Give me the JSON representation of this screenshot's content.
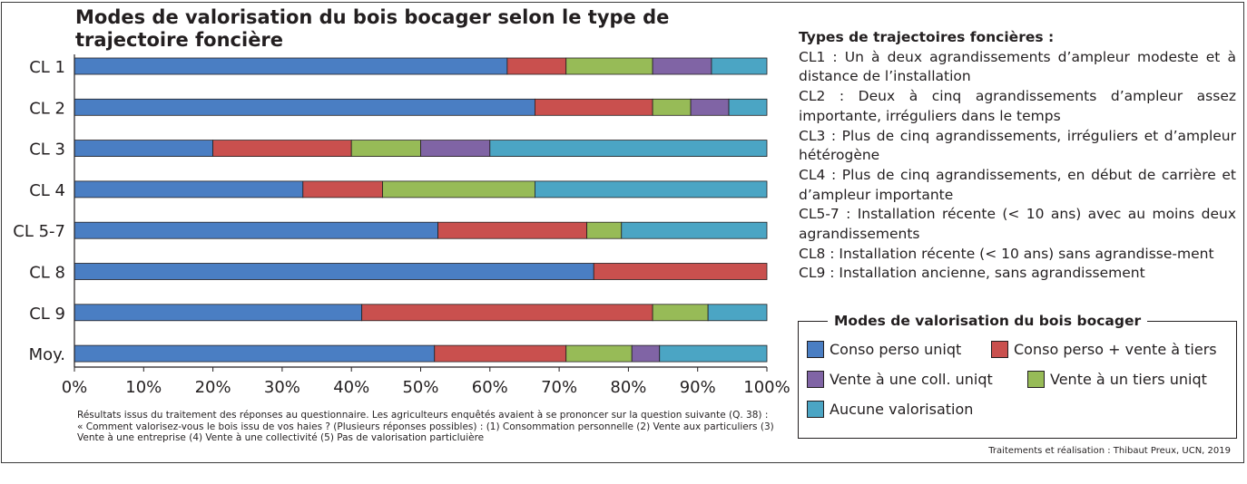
{
  "chart_data": {
    "type": "bar",
    "orientation": "horizontal",
    "stacked": true,
    "title": "Modes de valorisation du bois bocager selon le type de trajectoire foncière",
    "categories": [
      "CL 1",
      "CL 2",
      "CL 3",
      "CL 4",
      "CL 5-7",
      "CL 8",
      "CL 9",
      "Moy."
    ],
    "series": [
      {
        "name": "Conso perso uniqt",
        "color": "#4a7ec3",
        "values": [
          62.5,
          66.5,
          20,
          33,
          52.5,
          75,
          41.5,
          52
        ]
      },
      {
        "name": "Conso perso + vente à tiers",
        "color": "#c9504e",
        "values": [
          8.5,
          17,
          20,
          11.5,
          21.5,
          25,
          42,
          19
        ]
      },
      {
        "name": "Vente à un tiers uniqt",
        "color": "#97bb57",
        "values": [
          12.5,
          5.5,
          10,
          22,
          5,
          0,
          8,
          9.5
        ]
      },
      {
        "name": "Vente à une coll. uniqt",
        "color": "#8064a5",
        "values": [
          8.5,
          5.5,
          10,
          0,
          0,
          0,
          0,
          4
        ]
      },
      {
        "name": "Aucune valorisation",
        "color": "#4ba5c4",
        "values": [
          8,
          5.5,
          40,
          33.5,
          21,
          0,
          8.5,
          15.5
        ]
      }
    ],
    "xlim": [
      0,
      100
    ],
    "x_ticks": [
      "0%",
      "10%",
      "20%",
      "30%",
      "40%",
      "50%",
      "60%",
      "70%",
      "80%",
      "90%",
      "100%"
    ],
    "xlabel": "",
    "ylabel": "",
    "grid": false,
    "legend_position": "bottom-right"
  },
  "title_text": "Modes de valorisation du bois bocager selon le type de trajectoire foncière",
  "note_text": "Résultats issus du traitement des réponses au questionnaire. Les agriculteurs enquêtés avaient à se prononcer sur la question suivante (Q. 38) : « Comment valorisez-vous le bois issu de vos haies ? (Plusieurs réponses possibles) : (1) Consommation personnelle (2) Vente aux particuliers (3) Vente à une entreprise (4) Vente à une collectivité (5) Pas de valorisation particluière",
  "credit_text": "Traitements et réalisation : Thibaut Preux, UCN, 2019",
  "types": {
    "title": "Types de trajectoires foncières :",
    "items": [
      "CL1 : Un à deux agrandissements d’ampleur modeste et à distance de l’installation",
      "CL2 : Deux à cinq agrandissements d’ampleur assez importante, irréguliers dans le temps",
      "CL3 : Plus de cinq agrandissements, irréguliers et d’ampleur hétérogène",
      "CL4 : Plus de cinq agrandissements, en début de carrière et d’ampleur importante",
      "CL5-7 : Installation récente (< 10 ans) avec au moins deux agrandissements",
      "CL8 : Installation récente (< 10 ans) sans agrandisse-ment",
      "CL9 : Installation ancienne, sans agrandissement"
    ]
  },
  "legend": {
    "title": "Modes de valorisation du bois bocager",
    "items": [
      {
        "label": "Conso perso uniqt",
        "color": "#4a7ec3"
      },
      {
        "label": "Conso perso + vente à tiers",
        "color": "#c9504e"
      },
      {
        "label": "Vente à une coll. uniqt",
        "color": "#8064a5"
      },
      {
        "label": "Vente à un tiers uniqt",
        "color": "#97bb57"
      },
      {
        "label": "Aucune valorisation",
        "color": "#4ba5c4"
      }
    ]
  }
}
